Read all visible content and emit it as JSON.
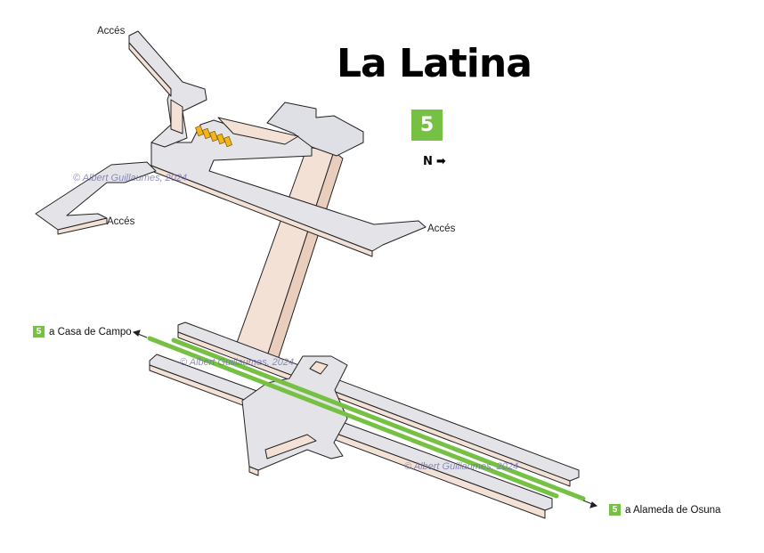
{
  "title": "La Latina",
  "line_badge": "5",
  "north_label": "N",
  "access_labels": [
    "Accés",
    "Accés",
    "Accés"
  ],
  "destinations": [
    {
      "badge": "5",
      "text": "a Casa de Campo"
    },
    {
      "badge": "5",
      "text": "a Alameda de Osuna"
    }
  ],
  "watermark": "© Albert Guillaumes, 2024",
  "colors": {
    "line5": "#76c043",
    "floor": "#e4e4e8",
    "wall_side": "#f4e1d6",
    "outline": "#222222",
    "stairs": "#f2b51e",
    "watermark": "#6a6ab0"
  },
  "icons": {
    "north_arrow": "arrow-right-icon"
  }
}
